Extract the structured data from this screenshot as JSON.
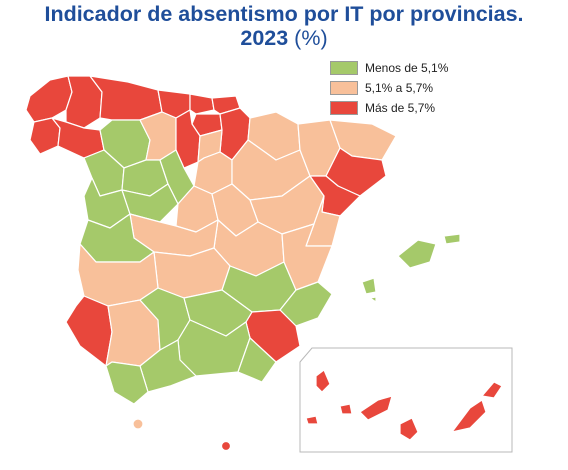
{
  "title": {
    "line1": "Indicador de absentismo por IT por provincias.",
    "line2_bold": "2023",
    "line2_unit": " (%)"
  },
  "legend": [
    {
      "label": "Menos de 5,1%",
      "color": "#a5c96a"
    },
    {
      "label": "5,1% a 5,7%",
      "color": "#f8c09a"
    },
    {
      "label": "Más de 5,7%",
      "color": "#e8473c"
    }
  ],
  "colors": {
    "low": "#a5c96a",
    "mid": "#f8c09a",
    "high": "#e8473c",
    "title": "#1f4e9a",
    "border": "#ffffff"
  }
}
